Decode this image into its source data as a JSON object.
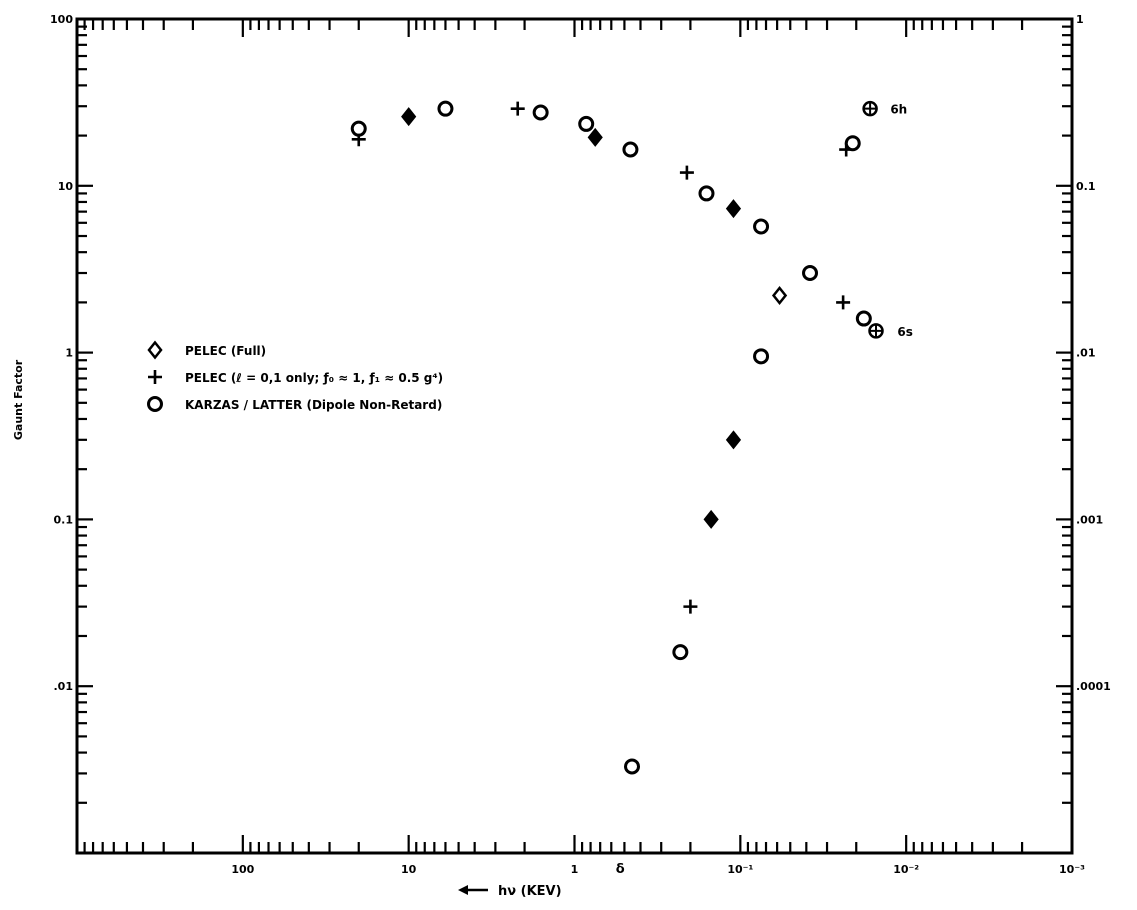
{
  "chart_data": {
    "type": "scatter",
    "x_scale": "log-reversed",
    "y_scale": "log",
    "xlim": [
      1000,
      0.001
    ],
    "ylim": [
      0.001,
      100
    ],
    "y2lim": [
      1e-05,
      1
    ],
    "xlabel": "hν  (KEV)",
    "ylabel": "Gaunt Factor",
    "x_tick_labels": [
      {
        "value": 100,
        "label": "100"
      },
      {
        "value": 10,
        "label": "10"
      },
      {
        "value": 1,
        "label": "1"
      },
      {
        "value": 0.1,
        "label": "10⁻¹"
      },
      {
        "value": 0.01,
        "label": "10⁻²"
      },
      {
        "value": 0.001,
        "label": "10⁻³"
      }
    ],
    "y_tick_labels": [
      {
        "value": 100,
        "label": "100"
      },
      {
        "value": 10,
        "label": "10"
      },
      {
        "value": 1,
        "label": "1"
      },
      {
        "value": 0.1,
        "label": "0.1"
      },
      {
        "value": 0.01,
        "label": ".01"
      }
    ],
    "y2_tick_labels": [
      {
        "value": 1,
        "label": "1"
      },
      {
        "value": 0.1,
        "label": "0.1"
      },
      {
        "value": 0.01,
        "label": ".01"
      },
      {
        "value": 0.001,
        "label": ".001"
      },
      {
        "value": 0.0001,
        "label": ".0001"
      }
    ],
    "grid": false,
    "legend_position": "left-middle",
    "legend": [
      {
        "marker": "diamond",
        "text": "PELEC  (Full)"
      },
      {
        "marker": "plus",
        "text": "PELEC  (ℓ = 0,1 only;  ƒ₀ ≈ 1,  ƒ₁ ≈ 0.5 g⁴)"
      },
      {
        "marker": "circle",
        "text": "KARZAS / LATTER  (Dipole Non-Retard)"
      }
    ],
    "annotations": [
      {
        "text": "6h",
        "x": 0.016,
        "y": 29
      },
      {
        "text": "6s",
        "x": 0.0145,
        "y": 1.35
      }
    ],
    "extra_tick_labels": [
      {
        "text": "δ",
        "x": 0.53,
        "y": 0.001
      }
    ],
    "series": [
      {
        "name": "PELEC  (Full)",
        "marker": "diamond",
        "points": [
          {
            "x": 10,
            "y": 26,
            "filled": true
          },
          {
            "x": 0.75,
            "y": 19.5,
            "filled": true
          },
          {
            "x": 0.11,
            "y": 7.3,
            "filled": true
          },
          {
            "x": 0.058,
            "y": 2.2,
            "filled": false
          },
          {
            "x": 0.11,
            "y": 0.3,
            "filled": true
          },
          {
            "x": 0.15,
            "y": 0.1,
            "filled": true
          }
        ]
      },
      {
        "name": "PELEC  (ℓ = 0,1 only;  ƒ₀ ≈ 1,  ƒ₁ ≈ 0.5 g⁴)",
        "marker": "plus",
        "points": [
          {
            "x": 20,
            "y": 19
          },
          {
            "x": 2.2,
            "y": 29
          },
          {
            "x": 0.21,
            "y": 12
          },
          {
            "x": 0.023,
            "y": 16.5
          },
          {
            "x": 0.024,
            "y": 2.0
          },
          {
            "x": 0.2,
            "y": 0.03
          }
        ]
      },
      {
        "name": "KARZAS / LATTER  (Dipole Non-Retard)",
        "marker": "circle",
        "points": [
          {
            "x": 20,
            "y": 22
          },
          {
            "x": 6,
            "y": 29
          },
          {
            "x": 1.6,
            "y": 27.5
          },
          {
            "x": 0.85,
            "y": 23.5
          },
          {
            "x": 0.46,
            "y": 16.5
          },
          {
            "x": 0.16,
            "y": 9
          },
          {
            "x": 0.075,
            "y": 5.7
          },
          {
            "x": 0.038,
            "y": 3.0
          },
          {
            "x": 0.021,
            "y": 18
          },
          {
            "x": 0.018,
            "y": 1.6
          },
          {
            "x": 0.075,
            "y": 0.95
          },
          {
            "x": 0.23,
            "y": 0.016
          },
          {
            "x": 0.45,
            "y": 0.0033
          }
        ]
      },
      {
        "name": "",
        "marker": "circle-plus",
        "points": [
          {
            "x": 0.0165,
            "y": 29
          },
          {
            "x": 0.0152,
            "y": 1.35
          }
        ]
      }
    ]
  }
}
